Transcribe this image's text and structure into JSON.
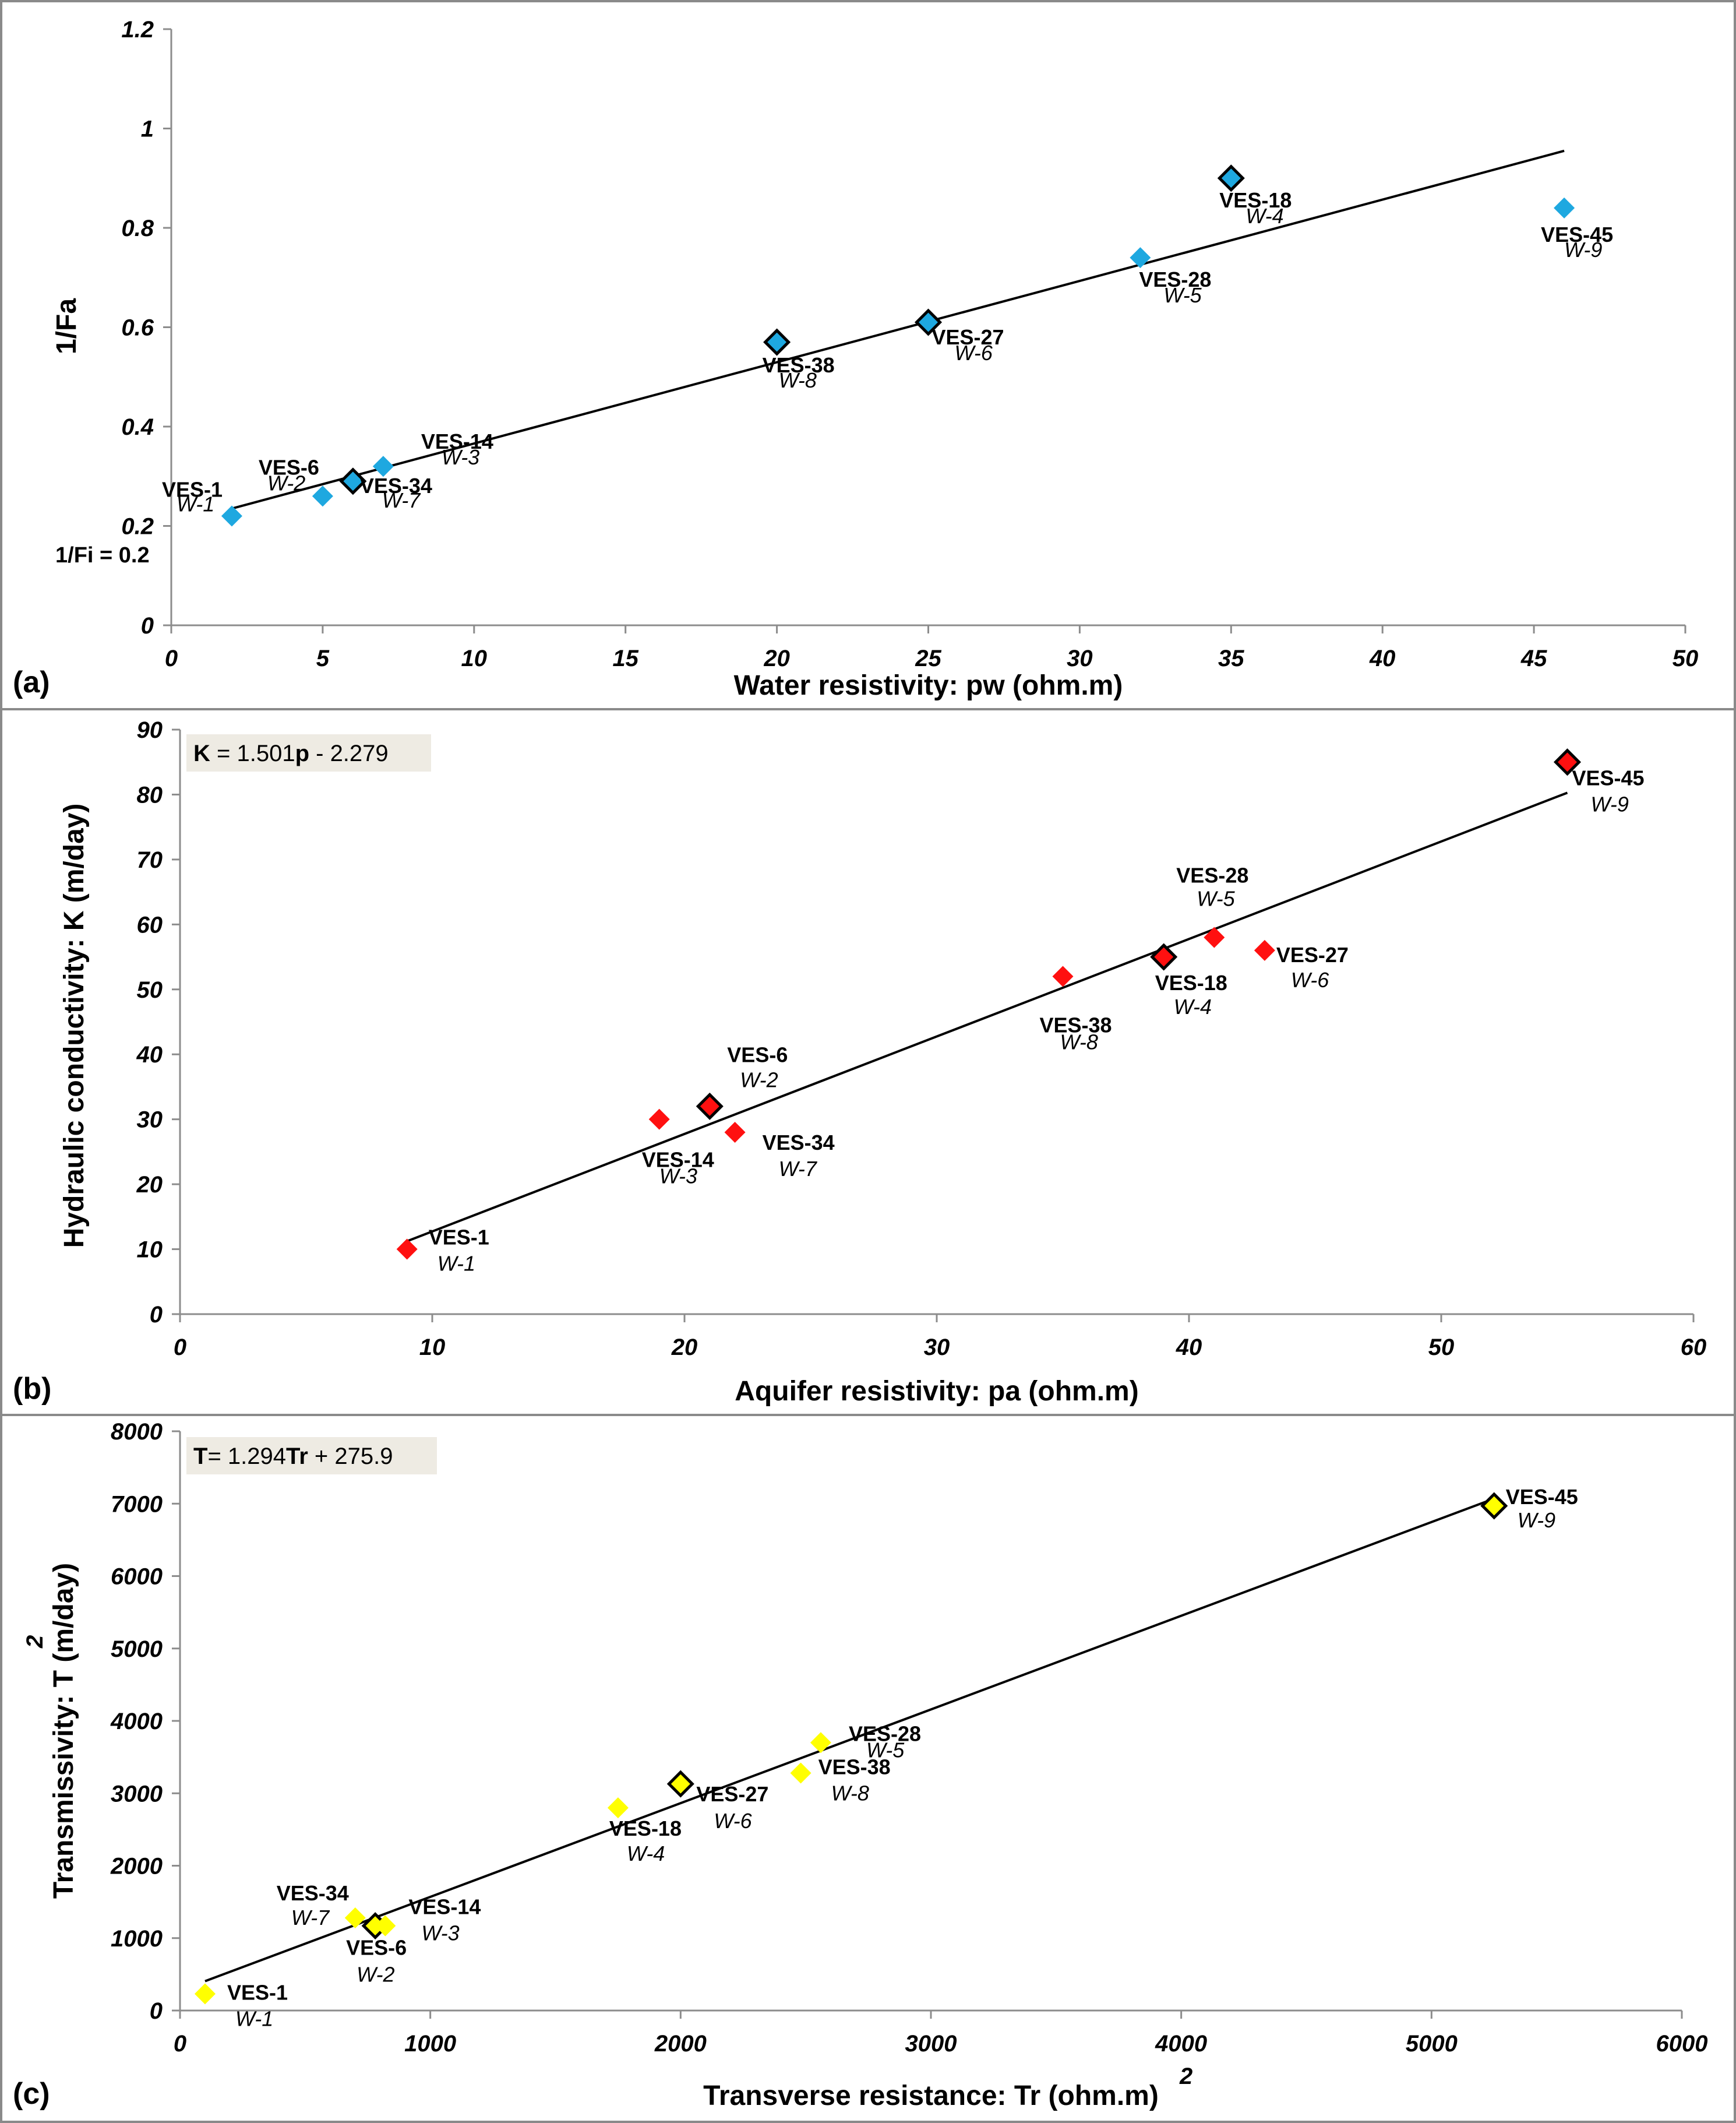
{
  "chart_data": [
    {
      "type": "scatter",
      "panel_label": "(a)",
      "xlabel": "Water resistivity: pw (ohm.m)",
      "ylabel": "1/Fa",
      "xlim": [
        0,
        50
      ],
      "ylim": [
        0,
        1.2
      ],
      "x_ticks": [
        "0",
        "5",
        "10",
        "15",
        "20",
        "25",
        "30",
        "35",
        "40",
        "45",
        "50"
      ],
      "y_ticks": [
        "0",
        "0.2",
        "0.4",
        "0.6",
        "0.8",
        "1",
        "1.2"
      ],
      "marker_color": "#1ea8e0",
      "note": "1/Fi = 0.2",
      "trendline": {
        "x": [
          2,
          46
        ],
        "y": [
          0.235,
          0.955
        ]
      },
      "points": [
        {
          "x": 2,
          "y": 0.22,
          "label": "VES-1",
          "well": "W-1",
          "outlined": false
        },
        {
          "x": 5,
          "y": 0.26,
          "label": "VES-6",
          "well": "W-2",
          "outlined": false
        },
        {
          "x": 7,
          "y": 0.32,
          "label": "VES-14",
          "well": "W-3",
          "outlined": false
        },
        {
          "x": 6,
          "y": 0.29,
          "label": "VES-34",
          "well": "W-7",
          "outlined": true
        },
        {
          "x": 20,
          "y": 0.57,
          "label": "VES-38",
          "well": "W-8",
          "outlined": true
        },
        {
          "x": 25,
          "y": 0.61,
          "label": "VES-27",
          "well": "W-6",
          "outlined": true
        },
        {
          "x": 32,
          "y": 0.74,
          "label": "VES-28",
          "well": "W-5",
          "outlined": false
        },
        {
          "x": 35,
          "y": 0.9,
          "label": "VES-18",
          "well": "W-4",
          "outlined": true
        },
        {
          "x": 46,
          "y": 0.84,
          "label": "VES-45",
          "well": "W-9",
          "outlined": false
        }
      ]
    },
    {
      "type": "scatter",
      "panel_label": "(b)",
      "xlabel": "Aquifer resistivity: pa (ohm.m)",
      "ylabel": "Hydraulic conductivity: K (m/day)",
      "xlim": [
        0,
        60
      ],
      "ylim": [
        0,
        90
      ],
      "x_ticks": [
        "0",
        "10",
        "20",
        "30",
        "40",
        "50",
        "60"
      ],
      "y_ticks": [
        "0",
        "10",
        "20",
        "30",
        "40",
        "50",
        "60",
        "70",
        "80",
        "90"
      ],
      "marker_color": "#ff1010",
      "equation": {
        "var": "K",
        "op": " = 1.501",
        "x": "p",
        "rest": " - 2.279"
      },
      "trendline": {
        "x": [
          9,
          55
        ],
        "y": [
          11.23,
          80.28
        ]
      },
      "points": [
        {
          "x": 9,
          "y": 10,
          "label": "VES-1",
          "well": "W-1",
          "outlined": false
        },
        {
          "x": 19,
          "y": 30,
          "label": "VES-14",
          "well": "W-3",
          "outlined": false
        },
        {
          "x": 21,
          "y": 32,
          "label": "VES-6",
          "well": "W-2",
          "outlined": true
        },
        {
          "x": 22,
          "y": 28,
          "label": "VES-34",
          "well": "W-7",
          "outlined": false
        },
        {
          "x": 35,
          "y": 52,
          "label": "VES-38",
          "well": "W-8",
          "outlined": false
        },
        {
          "x": 39,
          "y": 55,
          "label": "VES-18",
          "well": "W-4",
          "outlined": true
        },
        {
          "x": 41,
          "y": 58,
          "label": "VES-28",
          "well": "W-5",
          "outlined": false
        },
        {
          "x": 43,
          "y": 56,
          "label": "VES-27",
          "well": "W-6",
          "outlined": false
        },
        {
          "x": 55,
          "y": 85,
          "label": "VES-45",
          "well": "W-9",
          "outlined": true
        }
      ]
    },
    {
      "type": "scatter",
      "panel_label": "(c)",
      "xlabel": "Transverse resistance: Tr (ohm.m)",
      "xlabel_sup": "2",
      "ylabel": "Transmissivity: T (m/day)",
      "ylabel_sup": "2",
      "xlim": [
        0,
        6000
      ],
      "ylim": [
        0,
        8000
      ],
      "x_ticks": [
        "0",
        "1000",
        "2000",
        "3000",
        "4000",
        "5000",
        "6000"
      ],
      "y_ticks": [
        "0",
        "1000",
        "2000",
        "3000",
        "4000",
        "5000",
        "6000",
        "7000",
        "8000"
      ],
      "marker_color": "#ffff00",
      "equation": {
        "var": "T",
        "op": "= 1.294",
        "x": "Tr",
        "rest": " + 275.9"
      },
      "trendline": {
        "x": [
          100,
          5250
        ],
        "y": [
          405.3,
          7069.4
        ]
      },
      "points": [
        {
          "x": 100,
          "y": 230,
          "label": "VES-1",
          "well": "W-1",
          "outlined": false
        },
        {
          "x": 700,
          "y": 1280,
          "label": "VES-34",
          "well": "W-7",
          "outlined": false
        },
        {
          "x": 780,
          "y": 1170,
          "label": "VES-6",
          "well": "W-2",
          "outlined": true
        },
        {
          "x": 820,
          "y": 1170,
          "label": "VES-14",
          "well": "W-3",
          "outlined": false
        },
        {
          "x": 1750,
          "y": 2800,
          "label": "VES-18",
          "well": "W-4",
          "outlined": false
        },
        {
          "x": 2000,
          "y": 3130,
          "label": "VES-27",
          "well": "W-6",
          "outlined": true
        },
        {
          "x": 2480,
          "y": 3280,
          "label": "VES-38",
          "well": "W-8",
          "outlined": false
        },
        {
          "x": 2560,
          "y": 3700,
          "label": "VES-28",
          "well": "W-5",
          "outlined": false
        },
        {
          "x": 5250,
          "y": 6970,
          "label": "VES-45",
          "well": "W-9",
          "outlined": true
        }
      ]
    }
  ]
}
